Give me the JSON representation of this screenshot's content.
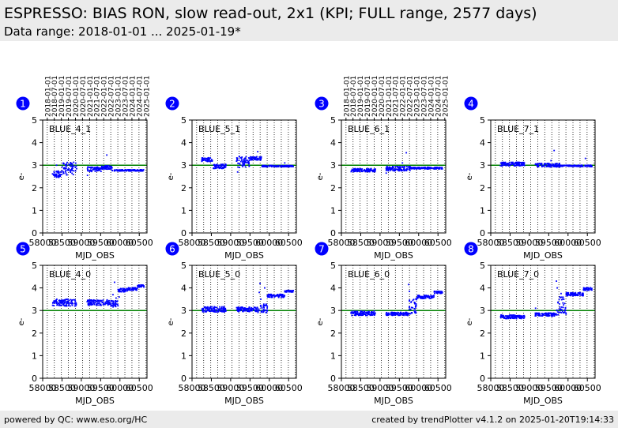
{
  "header": {
    "title": "ESPRESSO: BIAS RON, slow read-out, 2x1 (KPI; FULL range, 2577 days)",
    "subtitle": "Data range: 2018-01-01 ... 2025-01-19*"
  },
  "footer": {
    "left": "powered by QC: www.eso.org/HC",
    "right": "created by trendPlotter v4.1.2 on 2025-01-20T19:14:33"
  },
  "colors": {
    "points": "#0000ff",
    "reference": "#008000",
    "badge": "#0000ff",
    "header_bg": "#ebebeb"
  },
  "chart_data": [
    {
      "type": "scatter",
      "panel": 1,
      "label": "BLUE_4_1",
      "xlabel": "MJD_OBS",
      "ylabel": "e-",
      "xlim": [
        58000,
        60700
      ],
      "ylim": [
        0,
        5
      ],
      "xticks": [
        58000,
        58500,
        59000,
        59500,
        60000,
        60500
      ],
      "yticks": [
        0,
        1,
        2,
        3,
        4,
        5
      ],
      "reference": 3.0,
      "date_axis_labels": [
        "2018-01-01",
        "2018-07-01",
        "2019-01-01",
        "2019-07-01",
        "2020-01-01",
        "2020-07-01",
        "2021-01-01",
        "2021-07-01",
        "2022-01-01",
        "2022-07-01",
        "2023-01-01",
        "2023-07-01",
        "2024-01-01",
        "2024-07-01",
        "2025-01-01"
      ],
      "date_axis_mjd": [
        58119,
        58300,
        58484,
        58665,
        58849,
        59031,
        59215,
        59396,
        59580,
        59761,
        59945,
        60126,
        60310,
        60492,
        60676
      ],
      "segments": [
        {
          "x0": 58250,
          "x1": 58500,
          "y": 2.6,
          "spread": 0.14
        },
        {
          "x0": 58500,
          "x1": 58880,
          "y": 2.85,
          "spread": 0.28
        },
        {
          "x0": 59150,
          "x1": 59520,
          "y": 2.82,
          "spread": 0.1
        },
        {
          "x0": 59520,
          "x1": 59800,
          "y": 2.9,
          "spread": 0.08
        },
        {
          "x0": 59800,
          "x1": 60620,
          "y": 2.77,
          "spread": 0.03
        }
      ],
      "outliers": [
        [
          59660,
          3.45
        ],
        [
          59160,
          2.55
        ],
        [
          58360,
          3.0
        ]
      ]
    },
    {
      "type": "scatter",
      "panel": 2,
      "label": "BLUE_5_1",
      "xlabel": "MJD_OBS",
      "ylabel": "e-",
      "xlim": [
        58000,
        60700
      ],
      "ylim": [
        0,
        5
      ],
      "xticks": [
        58000,
        58500,
        59000,
        59500,
        60000,
        60500
      ],
      "yticks": [
        0,
        1,
        2,
        3,
        4,
        5
      ],
      "reference": 3.0,
      "segments": [
        {
          "x0": 58250,
          "x1": 58550,
          "y": 3.25,
          "spread": 0.09
        },
        {
          "x0": 58550,
          "x1": 58880,
          "y": 2.95,
          "spread": 0.1
        },
        {
          "x0": 59150,
          "x1": 59500,
          "y": 3.15,
          "spread": 0.25
        },
        {
          "x0": 59500,
          "x1": 59800,
          "y": 3.3,
          "spread": 0.08
        },
        {
          "x0": 59800,
          "x1": 60620,
          "y": 2.96,
          "spread": 0.03
        }
      ],
      "outliers": [
        [
          59180,
          2.7
        ],
        [
          59700,
          3.6
        ],
        [
          60400,
          3.1
        ]
      ]
    },
    {
      "type": "scatter",
      "panel": 3,
      "label": "BLUE_6_1",
      "xlabel": "MJD_OBS",
      "ylabel": "e-",
      "xlim": [
        58000,
        60700
      ],
      "ylim": [
        0,
        5
      ],
      "xticks": [
        58000,
        58500,
        59000,
        59500,
        60000,
        60500
      ],
      "yticks": [
        0,
        1,
        2,
        3,
        4,
        5
      ],
      "reference": 3.0,
      "date_axis_labels": [
        "2018-01-01",
        "2018-07-01",
        "2019-01-01",
        "2019-07-01",
        "2020-01-01",
        "2020-07-01",
        "2021-01-01",
        "2021-07-01",
        "2022-01-01",
        "2022-07-01",
        "2023-01-01",
        "2023-07-01",
        "2024-01-01",
        "2024-07-01",
        "2025-01-01"
      ],
      "date_axis_mjd": [
        58119,
        58300,
        58484,
        58665,
        58849,
        59031,
        59215,
        59396,
        59580,
        59761,
        59945,
        60126,
        60310,
        60492,
        60676
      ],
      "segments": [
        {
          "x0": 58250,
          "x1": 58880,
          "y": 2.78,
          "spread": 0.07
        },
        {
          "x0": 59150,
          "x1": 59800,
          "y": 2.85,
          "spread": 0.1
        },
        {
          "x0": 59800,
          "x1": 60620,
          "y": 2.87,
          "spread": 0.04
        }
      ],
      "outliers": [
        [
          59680,
          3.55
        ],
        [
          59580,
          3.1
        ],
        [
          59160,
          2.65
        ]
      ]
    },
    {
      "type": "scatter",
      "panel": 4,
      "label": "BLUE_7_1",
      "xlabel": "MJD_OBS",
      "ylabel": "e-",
      "xlim": [
        58000,
        60700
      ],
      "ylim": [
        0,
        5
      ],
      "xticks": [
        58000,
        58500,
        59000,
        59500,
        60000,
        60500
      ],
      "yticks": [
        0,
        1,
        2,
        3,
        4,
        5
      ],
      "reference": 3.0,
      "segments": [
        {
          "x0": 58250,
          "x1": 58880,
          "y": 3.05,
          "spread": 0.08
        },
        {
          "x0": 59150,
          "x1": 59800,
          "y": 3.0,
          "spread": 0.08
        },
        {
          "x0": 59800,
          "x1": 60620,
          "y": 2.97,
          "spread": 0.03
        }
      ],
      "outliers": [
        [
          59640,
          3.65
        ],
        [
          59560,
          3.2
        ],
        [
          60450,
          3.3
        ]
      ]
    },
    {
      "type": "scatter",
      "panel": 5,
      "label": "BLUE_4_0",
      "xlabel": "MJD_OBS",
      "ylabel": "e-",
      "xlim": [
        58000,
        60700
      ],
      "ylim": [
        0,
        5
      ],
      "xticks": [
        58000,
        58500,
        59000,
        59500,
        60000,
        60500
      ],
      "yticks": [
        0,
        1,
        2,
        3,
        4,
        5
      ],
      "reference": 3.0,
      "segments": [
        {
          "x0": 58250,
          "x1": 58880,
          "y": 3.35,
          "spread": 0.15
        },
        {
          "x0": 59150,
          "x1": 59750,
          "y": 3.35,
          "spread": 0.12
        },
        {
          "x0": 59750,
          "x1": 59950,
          "y": 3.3,
          "spread": 0.15
        },
        {
          "x0": 59950,
          "x1": 60200,
          "y": 3.9,
          "spread": 0.08
        },
        {
          "x0": 60200,
          "x1": 60450,
          "y": 3.95,
          "spread": 0.06
        },
        {
          "x0": 60450,
          "x1": 60620,
          "y": 4.08,
          "spread": 0.05
        }
      ],
      "outliers": [
        [
          59860,
          4.25
        ],
        [
          59820,
          3.7
        ],
        [
          59900,
          3.55
        ],
        [
          59980,
          3.6
        ]
      ]
    },
    {
      "type": "scatter",
      "panel": 6,
      "label": "BLUE_5_0",
      "xlabel": "MJD_OBS",
      "ylabel": "e-",
      "xlim": [
        58000,
        60700
      ],
      "ylim": [
        0,
        5
      ],
      "xticks": [
        58000,
        58500,
        59000,
        59500,
        60000,
        60500
      ],
      "yticks": [
        0,
        1,
        2,
        3,
        4,
        5
      ],
      "reference": 3.0,
      "segments": [
        {
          "x0": 58250,
          "x1": 58880,
          "y": 3.05,
          "spread": 0.12
        },
        {
          "x0": 59150,
          "x1": 59700,
          "y": 3.05,
          "spread": 0.1
        },
        {
          "x0": 59700,
          "x1": 59950,
          "y": 3.1,
          "spread": 0.2
        },
        {
          "x0": 59950,
          "x1": 60400,
          "y": 3.65,
          "spread": 0.07
        },
        {
          "x0": 60400,
          "x1": 60620,
          "y": 3.85,
          "spread": 0.04
        }
      ],
      "outliers": [
        [
          59760,
          4.2
        ],
        [
          59740,
          3.8
        ],
        [
          59780,
          3.5
        ],
        [
          59880,
          4.0
        ]
      ]
    },
    {
      "type": "scatter",
      "panel": 7,
      "label": "BLUE_6_0",
      "xlabel": "MJD_OBS",
      "ylabel": "e-",
      "xlim": [
        58000,
        60700
      ],
      "ylim": [
        0,
        5
      ],
      "xticks": [
        58000,
        58500,
        59000,
        59500,
        60000,
        60500
      ],
      "yticks": [
        0,
        1,
        2,
        3,
        4,
        5
      ],
      "reference": 3.0,
      "segments": [
        {
          "x0": 58250,
          "x1": 58880,
          "y": 2.88,
          "spread": 0.1
        },
        {
          "x0": 59150,
          "x1": 59750,
          "y": 2.85,
          "spread": 0.07
        },
        {
          "x0": 59750,
          "x1": 59950,
          "y": 3.2,
          "spread": 0.35
        },
        {
          "x0": 59950,
          "x1": 60400,
          "y": 3.6,
          "spread": 0.07
        },
        {
          "x0": 60400,
          "x1": 60620,
          "y": 3.8,
          "spread": 0.05
        }
      ],
      "outliers": [
        [
          59740,
          4.15
        ],
        [
          59760,
          3.85
        ],
        [
          59850,
          3.45
        ],
        [
          59900,
          3.3
        ]
      ]
    },
    {
      "type": "scatter",
      "panel": 8,
      "label": "BLUE_7_0",
      "xlabel": "MJD_OBS",
      "ylabel": "e-",
      "xlim": [
        58000,
        60700
      ],
      "ylim": [
        0,
        5
      ],
      "xticks": [
        58000,
        58500,
        59000,
        59500,
        60000,
        60500
      ],
      "yticks": [
        0,
        1,
        2,
        3,
        4,
        5
      ],
      "reference": 3.0,
      "segments": [
        {
          "x0": 58250,
          "x1": 58880,
          "y": 2.72,
          "spread": 0.08
        },
        {
          "x0": 59150,
          "x1": 59700,
          "y": 2.82,
          "spread": 0.07
        },
        {
          "x0": 59700,
          "x1": 59950,
          "y": 3.2,
          "spread": 0.4
        },
        {
          "x0": 59950,
          "x1": 60400,
          "y": 3.72,
          "spread": 0.07
        },
        {
          "x0": 60400,
          "x1": 60620,
          "y": 3.95,
          "spread": 0.06
        }
      ],
      "outliers": [
        [
          59700,
          4.3
        ],
        [
          59720,
          4.0
        ],
        [
          59820,
          3.75
        ],
        [
          59160,
          3.1
        ]
      ]
    }
  ]
}
